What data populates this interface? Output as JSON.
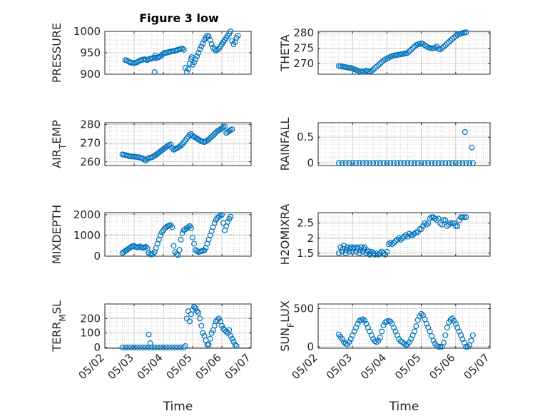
{
  "title": "Figure 3 low",
  "chart_data": [
    {
      "type": "scatter",
      "ylabel": "PRESSURE",
      "ylim": [
        900,
        1000
      ],
      "yticks": [
        900,
        950,
        1000
      ],
      "ytick_labels": [
        "900",
        "950",
        "1000"
      ],
      "xlim": [
        0,
        5
      ],
      "grid": true,
      "marker": "circle",
      "color": "#0072BD",
      "x": [
        0.7,
        0.75,
        0.8,
        0.85,
        0.9,
        0.95,
        1.0,
        1.05,
        1.1,
        1.15,
        1.2,
        1.25,
        1.3,
        1.35,
        1.4,
        1.45,
        1.5,
        1.55,
        1.6,
        1.65,
        1.7,
        1.75,
        1.8,
        1.85,
        1.9,
        1.95,
        2.0,
        2.05,
        2.1,
        2.15,
        2.2,
        2.25,
        2.3,
        2.35,
        2.4,
        2.45,
        2.5,
        2.55,
        2.6,
        2.65,
        2.7,
        2.75,
        2.8,
        2.85,
        2.9,
        2.95,
        2.97,
        3.0,
        3.05,
        3.1,
        3.15,
        3.2,
        3.25,
        3.3,
        3.35,
        3.4,
        3.45,
        3.5,
        3.55,
        3.6,
        3.65,
        3.7,
        3.75,
        3.8,
        3.85,
        3.9,
        3.95,
        4.0,
        4.05,
        4.1,
        4.15,
        4.2,
        4.25,
        4.3,
        4.35,
        4.4,
        4.45,
        4.5,
        4.55,
        1.7,
        1.72
      ],
      "y": [
        933,
        932,
        930,
        928,
        927,
        926,
        926,
        927,
        928,
        930,
        932,
        933,
        934,
        935,
        934,
        933,
        935,
        936,
        937,
        938,
        939,
        938,
        939,
        940,
        942,
        945,
        948,
        950,
        950,
        951,
        952,
        953,
        954,
        954,
        955,
        956,
        957,
        958,
        959,
        960,
        957,
        915,
        905,
        912,
        925,
        935,
        940,
        922,
        928,
        935,
        942,
        950,
        958,
        965,
        972,
        980,
        985,
        990,
        988,
        980,
        970,
        962,
        958,
        955,
        957,
        960,
        965,
        970,
        975,
        980,
        985,
        990,
        995,
        1000,
        978,
        970,
        975,
        985,
        990,
        905,
        944
      ]
    },
    {
      "type": "scatter",
      "ylabel": "THETA",
      "ylim": [
        266.5,
        280.5
      ],
      "yticks": [
        270,
        275,
        280
      ],
      "ytick_labels": [
        "270",
        "275",
        "280"
      ],
      "xlim": [
        0,
        5
      ],
      "grid": true,
      "marker": "circle",
      "color": "#0072BD",
      "x": [
        0.6,
        0.65,
        0.7,
        0.75,
        0.8,
        0.85,
        0.9,
        0.95,
        1.0,
        1.05,
        1.1,
        1.15,
        1.2,
        1.25,
        1.3,
        1.35,
        1.4,
        1.45,
        1.5,
        1.55,
        1.6,
        1.65,
        1.7,
        1.75,
        1.8,
        1.85,
        1.9,
        1.95,
        2.0,
        2.05,
        2.1,
        2.15,
        2.2,
        2.25,
        2.3,
        2.35,
        2.4,
        2.45,
        2.5,
        2.55,
        2.6,
        2.65,
        2.7,
        2.75,
        2.8,
        2.85,
        2.9,
        2.95,
        3.0,
        3.05,
        3.1,
        3.15,
        3.2,
        3.25,
        3.3,
        3.35,
        3.4,
        3.45,
        3.5,
        3.55,
        3.6,
        3.65,
        3.7,
        3.75,
        3.8,
        3.85,
        3.9,
        3.95,
        4.0,
        4.05,
        4.1,
        4.15,
        4.2,
        4.25,
        4.3
      ],
      "y": [
        269.2,
        269.1,
        269.0,
        268.9,
        268.8,
        268.7,
        268.6,
        268.5,
        268.3,
        268.1,
        267.9,
        267.7,
        267.5,
        267.4,
        267.3,
        267.5,
        267.7,
        267.5,
        267.4,
        267.6,
        268.0,
        268.5,
        269.0,
        269.5,
        270.0,
        270.5,
        271.0,
        271.3,
        271.6,
        271.9,
        272.2,
        272.4,
        272.6,
        272.7,
        272.8,
        272.9,
        273.0,
        273.1,
        273.2,
        273.3,
        273.5,
        274.0,
        274.5,
        275.0,
        275.5,
        276.0,
        276.2,
        276.4,
        276.6,
        276.4,
        276.0,
        275.6,
        275.3,
        275.1,
        275.0,
        275.0,
        275.2,
        275.6,
        274.8,
        274.6,
        275.0,
        275.5,
        276.0,
        276.5,
        277.0,
        277.5,
        278.0,
        278.5,
        279.0,
        279.3,
        279.6,
        279.8,
        280.0,
        280.1,
        280.2
      ]
    },
    {
      "type": "scatter",
      "ylabel": "AIR_TEMP",
      "ylim": [
        258,
        281
      ],
      "yticks": [
        260,
        270,
        280
      ],
      "ytick_labels": [
        "260",
        "270",
        "280"
      ],
      "xlim": [
        0,
        5
      ],
      "grid": true,
      "marker": "circle",
      "color": "#0072BD",
      "x": [
        0.6,
        0.65,
        0.7,
        0.75,
        0.8,
        0.85,
        0.9,
        0.95,
        1.0,
        1.05,
        1.1,
        1.15,
        1.2,
        1.25,
        1.3,
        1.35,
        1.4,
        1.45,
        1.5,
        1.55,
        1.6,
        1.65,
        1.7,
        1.75,
        1.8,
        1.85,
        1.9,
        1.95,
        2.0,
        2.05,
        2.1,
        2.15,
        2.2,
        2.25,
        2.3,
        2.35,
        2.4,
        2.45,
        2.5,
        2.55,
        2.6,
        2.65,
        2.7,
        2.75,
        2.8,
        2.85,
        2.9,
        2.95,
        3.0,
        3.05,
        3.1,
        3.15,
        3.2,
        3.25,
        3.3,
        3.35,
        3.4,
        3.45,
        3.5,
        3.55,
        3.6,
        3.65,
        3.7,
        3.75,
        3.8,
        3.85,
        3.9,
        3.95,
        4.0,
        4.05,
        4.1,
        4.15,
        4.2,
        4.25,
        4.3,
        4.35
      ],
      "y": [
        264.0,
        263.8,
        263.6,
        263.4,
        263.2,
        263.0,
        262.9,
        262.8,
        262.8,
        262.7,
        262.6,
        262.5,
        262.3,
        262.0,
        261.8,
        261.2,
        260.6,
        261.5,
        262.0,
        262.2,
        262.4,
        262.8,
        263.2,
        263.8,
        264.4,
        265.0,
        265.6,
        266.2,
        266.8,
        267.4,
        268.0,
        268.6,
        269.0,
        269.4,
        267.5,
        266.5,
        266.8,
        267.2,
        267.6,
        268.2,
        268.8,
        269.5,
        270.5,
        271.5,
        272.5,
        273.5,
        274.5,
        275.0,
        274.0,
        273.5,
        273.0,
        272.5,
        272.0,
        271.5,
        271.0,
        270.8,
        270.6,
        271.0,
        271.5,
        272.0,
        272.8,
        273.5,
        274.2,
        275.0,
        275.8,
        276.5,
        277.0,
        277.5,
        278.0,
        278.5,
        279.0,
        275.5,
        276.0,
        276.5,
        277.0,
        277.5
      ]
    },
    {
      "type": "scatter",
      "ylabel": "RAINFALL",
      "ylim": [
        -0.05,
        0.78
      ],
      "yticks": [
        0,
        0.5
      ],
      "ytick_labels": [
        "0",
        "0.5"
      ],
      "xlim": [
        0,
        5
      ],
      "grid": true,
      "marker": "circle",
      "color": "#0072BD",
      "x": [
        0.6,
        0.7,
        0.8,
        0.9,
        1.0,
        1.1,
        1.2,
        1.3,
        1.4,
        1.5,
        1.6,
        1.7,
        1.8,
        1.9,
        2.0,
        2.1,
        2.2,
        2.3,
        2.4,
        2.5,
        2.6,
        2.7,
        2.8,
        2.9,
        3.0,
        3.1,
        3.2,
        3.3,
        3.4,
        3.5,
        3.6,
        3.7,
        3.8,
        3.9,
        4.0,
        4.1,
        4.2,
        4.3,
        4.4,
        4.5,
        4.27,
        4.47
      ],
      "y": [
        0,
        0,
        0,
        0,
        0,
        0,
        0,
        0,
        0,
        0,
        0,
        0,
        0,
        0,
        0,
        0,
        0,
        0,
        0,
        0,
        0,
        0,
        0,
        0,
        0,
        0,
        0,
        0,
        0,
        0,
        0,
        0,
        0,
        0,
        0,
        0,
        0,
        0,
        0,
        0,
        0.6,
        0.3
      ]
    },
    {
      "type": "scatter",
      "ylabel": "MIXDEPTH",
      "ylim": [
        0,
        2100
      ],
      "yticks": [
        0,
        1000,
        2000
      ],
      "ytick_labels": [
        "0",
        "1000",
        "2000"
      ],
      "xlim": [
        0,
        5
      ],
      "grid": true,
      "marker": "circle",
      "color": "#0072BD",
      "x": [
        0.6,
        0.65,
        0.7,
        0.75,
        0.8,
        0.85,
        0.9,
        0.95,
        1.0,
        1.05,
        1.1,
        1.15,
        1.2,
        1.25,
        1.3,
        1.35,
        1.4,
        1.45,
        1.5,
        1.55,
        1.6,
        1.65,
        1.7,
        1.75,
        1.8,
        1.85,
        1.9,
        1.95,
        2.0,
        2.05,
        2.1,
        2.15,
        2.2,
        2.25,
        2.3,
        2.35,
        2.4,
        2.45,
        2.5,
        2.55,
        2.6,
        2.65,
        2.7,
        2.75,
        2.8,
        2.85,
        2.9,
        2.95,
        3.0,
        3.05,
        3.1,
        3.15,
        3.2,
        3.25,
        3.3,
        3.35,
        3.4,
        3.45,
        3.5,
        3.55,
        3.6,
        3.65,
        3.7,
        3.75,
        3.8,
        3.85,
        3.9,
        3.95,
        4.0,
        4.05,
        4.1,
        4.15,
        4.2,
        4.25,
        4.3
      ],
      "y": [
        150,
        200,
        250,
        300,
        350,
        400,
        450,
        480,
        500,
        450,
        420,
        440,
        470,
        430,
        400,
        420,
        450,
        380,
        150,
        100,
        80,
        120,
        200,
        400,
        600,
        800,
        1000,
        1150,
        1250,
        1350,
        1400,
        1450,
        1480,
        1500,
        1400,
        500,
        200,
        100,
        50,
        300,
        800,
        1100,
        1250,
        1300,
        1350,
        1400,
        1450,
        1350,
        900,
        600,
        300,
        250,
        200,
        220,
        240,
        260,
        280,
        400,
        600,
        800,
        1000,
        1200,
        1400,
        1600,
        1750,
        1850,
        1900,
        1950,
        2000,
        1600,
        1250,
        1450,
        1650,
        1800,
        1900
      ]
    },
    {
      "type": "scatter",
      "ylabel": "H2OMIXRA",
      "ylim": [
        1.4,
        2.85
      ],
      "yticks": [
        1.5,
        2,
        2.5
      ],
      "ytick_labels": [
        "1.5",
        "2",
        "2.5"
      ],
      "xlim": [
        0,
        5
      ],
      "grid": true,
      "marker": "circle",
      "color": "#0072BD",
      "x": [
        0.6,
        0.65,
        0.7,
        0.72,
        0.75,
        0.8,
        0.82,
        0.85,
        0.9,
        0.92,
        0.95,
        1.0,
        1.02,
        1.05,
        1.1,
        1.12,
        1.15,
        1.2,
        1.22,
        1.25,
        1.3,
        1.32,
        1.35,
        1.4,
        1.42,
        1.45,
        1.5,
        1.52,
        1.55,
        1.6,
        1.65,
        1.7,
        1.75,
        1.8,
        1.85,
        1.9,
        1.95,
        2.0,
        2.05,
        2.1,
        2.15,
        2.2,
        2.25,
        2.3,
        2.35,
        2.4,
        2.45,
        2.5,
        2.55,
        2.6,
        2.65,
        2.7,
        2.75,
        2.8,
        2.85,
        2.9,
        2.95,
        3.0,
        3.05,
        3.1,
        3.15,
        3.2,
        3.25,
        3.3,
        3.35,
        3.4,
        3.45,
        3.5,
        3.55,
        3.6,
        3.65,
        3.7,
        3.75,
        3.8,
        3.85,
        3.9,
        3.95,
        4.0,
        4.05,
        4.1,
        4.15,
        4.2,
        4.25,
        4.3
      ],
      "y": [
        1.5,
        1.7,
        1.55,
        1.65,
        1.75,
        1.5,
        1.6,
        1.7,
        1.55,
        1.65,
        1.7,
        1.55,
        1.65,
        1.7,
        1.55,
        1.65,
        1.7,
        1.5,
        1.6,
        1.7,
        1.55,
        1.65,
        1.7,
        1.5,
        1.6,
        1.55,
        1.45,
        1.5,
        1.55,
        1.5,
        1.45,
        1.5,
        1.45,
        1.5,
        1.55,
        1.5,
        1.45,
        1.55,
        1.8,
        1.85,
        1.8,
        1.85,
        1.9,
        1.95,
        2.0,
        1.95,
        2.0,
        2.05,
        2.1,
        2.05,
        2.15,
        2.1,
        2.1,
        2.15,
        2.2,
        2.2,
        2.3,
        2.3,
        2.4,
        2.5,
        2.45,
        2.5,
        2.65,
        2.7,
        2.7,
        2.65,
        2.6,
        2.65,
        2.5,
        2.45,
        2.6,
        2.6,
        2.4,
        2.45,
        2.5,
        2.5,
        2.5,
        2.4,
        2.4,
        2.6,
        2.7,
        2.7,
        2.7,
        2.7
      ]
    },
    {
      "type": "scatter",
      "ylabel": "TERR_MSL",
      "ylim": [
        -5,
        300
      ],
      "yticks": [
        0,
        100,
        200
      ],
      "ytick_labels": [
        "0",
        "100",
        "200"
      ],
      "xlim": [
        0,
        5
      ],
      "grid": true,
      "marker": "circle",
      "color": "#0072BD",
      "x": [
        0.6,
        0.7,
        0.8,
        0.9,
        1.0,
        1.1,
        1.2,
        1.3,
        1.4,
        1.5,
        1.6,
        1.7,
        1.8,
        1.9,
        2.0,
        2.1,
        2.2,
        2.3,
        2.4,
        2.5,
        2.6,
        2.7,
        2.75,
        2.8,
        2.85,
        2.9,
        2.95,
        3.0,
        3.05,
        3.1,
        3.15,
        3.2,
        3.25,
        3.3,
        3.35,
        3.4,
        3.45,
        3.5,
        3.55,
        3.6,
        3.65,
        3.7,
        3.75,
        3.8,
        3.85,
        3.9,
        3.95,
        4.0,
        4.05,
        4.1,
        4.15,
        4.2,
        4.25,
        4.3,
        4.35,
        4.4,
        4.45,
        4.5,
        1.5,
        1.55
      ],
      "y": [
        0,
        0,
        0,
        0,
        0,
        0,
        0,
        0,
        0,
        0,
        0,
        0,
        0,
        0,
        0,
        0,
        0,
        0,
        0,
        0,
        0,
        0,
        10,
        200,
        250,
        180,
        230,
        260,
        280,
        270,
        250,
        240,
        200,
        150,
        100,
        80,
        50,
        20,
        20,
        60,
        100,
        120,
        150,
        180,
        190,
        200,
        180,
        150,
        130,
        120,
        110,
        100,
        120,
        80,
        60,
        40,
        20,
        10,
        90,
        30
      ]
    },
    {
      "type": "scatter",
      "ylabel": "SUN_FLUX",
      "ylim": [
        -20,
        560
      ],
      "yticks": [
        0,
        500
      ],
      "ytick_labels": [
        "0",
        "500"
      ],
      "xlim": [
        0,
        5
      ],
      "grid": true,
      "marker": "circle",
      "color": "#0072BD",
      "x": [
        0.6,
        0.65,
        0.7,
        0.75,
        0.8,
        0.85,
        0.9,
        0.95,
        1.0,
        1.05,
        1.1,
        1.15,
        1.2,
        1.25,
        1.3,
        1.35,
        1.4,
        1.45,
        1.5,
        1.55,
        1.6,
        1.65,
        1.7,
        1.75,
        1.8,
        1.85,
        1.9,
        1.95,
        2.0,
        2.05,
        2.1,
        2.15,
        2.2,
        2.25,
        2.3,
        2.35,
        2.4,
        2.45,
        2.5,
        2.55,
        2.6,
        2.65,
        2.7,
        2.75,
        2.8,
        2.85,
        2.9,
        2.95,
        3.0,
        3.05,
        3.1,
        3.15,
        3.2,
        3.25,
        3.3,
        3.35,
        3.4,
        3.45,
        3.5,
        3.55,
        3.6,
        3.65,
        3.7,
        3.75,
        3.8,
        3.85,
        3.9,
        3.95,
        4.0,
        4.05,
        4.1,
        4.15,
        4.2,
        4.25,
        4.3,
        4.35,
        4.4,
        4.45,
        4.5
      ],
      "y": [
        160,
        130,
        100,
        60,
        40,
        30,
        60,
        100,
        150,
        200,
        250,
        300,
        340,
        350,
        360,
        340,
        300,
        250,
        200,
        150,
        100,
        70,
        60,
        80,
        120,
        200,
        280,
        320,
        330,
        340,
        330,
        300,
        250,
        200,
        150,
        100,
        70,
        60,
        40,
        20,
        30,
        60,
        100,
        150,
        200,
        270,
        350,
        400,
        430,
        410,
        360,
        300,
        250,
        200,
        140,
        80,
        40,
        10,
        0,
        0,
        0,
        50,
        150,
        250,
        320,
        350,
        370,
        340,
        300,
        250,
        200,
        150,
        100,
        50,
        0,
        0,
        20,
        80,
        150
      ]
    }
  ],
  "shared_x": {
    "ticks": [
      0,
      1,
      2,
      3,
      4,
      5
    ],
    "tick_labels": [
      "05/02",
      "05/03",
      "05/04",
      "05/05",
      "05/06",
      "05/07"
    ],
    "xlabel": "Time"
  }
}
